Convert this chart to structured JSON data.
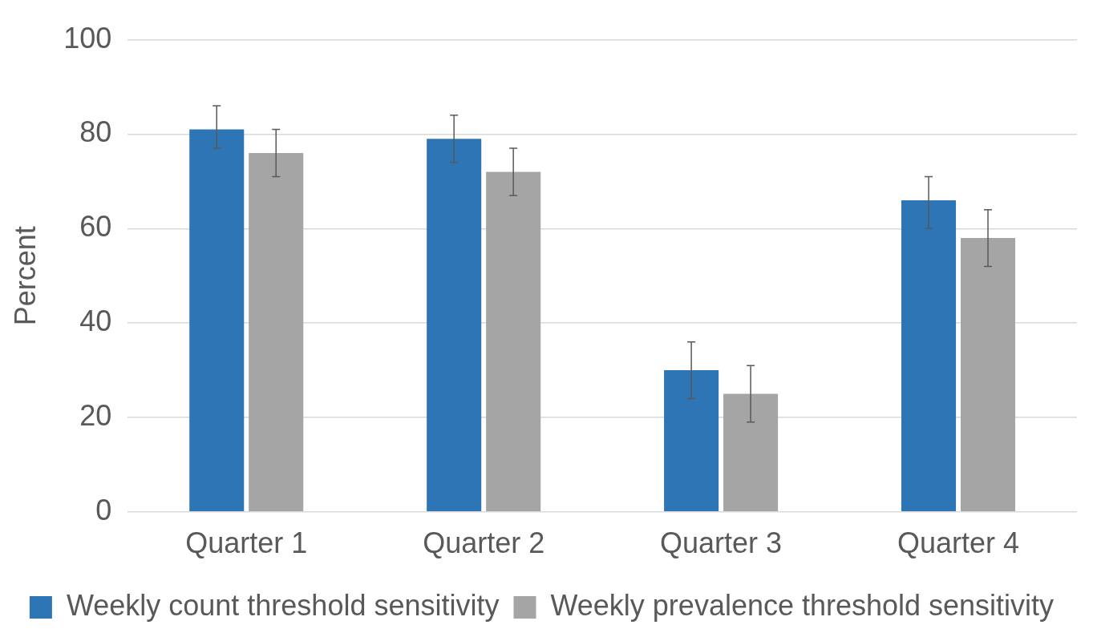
{
  "chart_data": {
    "type": "bar",
    "ylabel": "Percent",
    "categories": [
      "Quarter 1",
      "Quarter 2",
      "Quarter 3",
      "Quarter 4"
    ],
    "series": [
      {
        "name": "Weekly count threshold sensitivity",
        "color": "#2e75b6",
        "values": [
          81,
          79,
          30,
          66
        ],
        "errors": [
          [
            77,
            86
          ],
          [
            74,
            84
          ],
          [
            24,
            36
          ],
          [
            60,
            71
          ]
        ]
      },
      {
        "name": "Weekly prevalence threshold sensitivity",
        "color": "#a5a5a5",
        "values": [
          76,
          72,
          25,
          58
        ],
        "errors": [
          [
            71,
            81
          ],
          [
            67,
            77
          ],
          [
            19,
            31
          ],
          [
            52,
            64
          ]
        ]
      }
    ],
    "ylim": [
      0,
      100
    ],
    "yticks": [
      0,
      20,
      40,
      60,
      80,
      100
    ],
    "grid": "y",
    "legend": "bottom"
  }
}
